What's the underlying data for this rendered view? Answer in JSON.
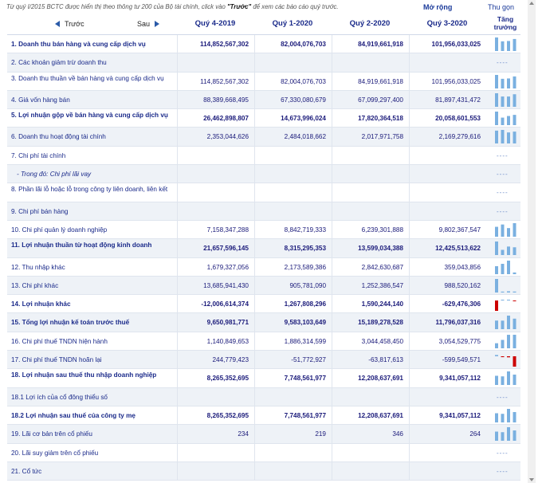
{
  "notice": {
    "text_prefix": "Từ quý I/2015 BCTC được hiển thị theo thông tư 200 của Bộ tài chính, click vào ",
    "text_link": "\"Trước\"",
    "text_suffix": " để xem các báo cáo quý trước."
  },
  "toolbar": {
    "expand_label": "Mở rộng",
    "collapse_label": "Thu gọn"
  },
  "nav": {
    "prev_label": "Trước",
    "next_label": "Sau"
  },
  "columns": [
    "Quý 4-2019",
    "Quý 1-2020",
    "Quý 2-2020",
    "Quý 3-2020"
  ],
  "trend_header": "Tăng trưởng",
  "colors": {
    "bar_pos": "#7ab0e0",
    "bar_neg": "#cc0000",
    "row_alt": "#eef2f7",
    "text": "#1a2a8a"
  },
  "rows": [
    {
      "label": "1. Doanh thu bán hàng và cung cấp dịch vụ",
      "bold": true,
      "values": [
        "114,852,567,302",
        "82,004,076,703",
        "84,919,661,918",
        "101,956,033,025"
      ],
      "trend": [
        114.85,
        82.0,
        84.92,
        101.96
      ]
    },
    {
      "label": "2. Các khoản giảm trừ doanh thu",
      "bold": false,
      "values": [
        "",
        "",
        "",
        ""
      ],
      "trend": null
    },
    {
      "label": "3. Doanh thu thuần về bán hàng và cung cấp dịch vụ",
      "bold": false,
      "values": [
        "114,852,567,302",
        "82,004,076,703",
        "84,919,661,918",
        "101,956,033,025"
      ],
      "trend": [
        114.85,
        82.0,
        84.92,
        101.96
      ]
    },
    {
      "label": "4. Giá vốn hàng bán",
      "bold": false,
      "values": [
        "88,389,668,495",
        "67,330,080,679",
        "67,099,297,400",
        "81,897,431,472"
      ],
      "trend": [
        88.39,
        67.33,
        67.1,
        81.9
      ]
    },
    {
      "label": "5. Lợi nhuận gộp về bán hàng và cung cấp dịch vụ",
      "bold": true,
      "values": [
        "26,462,898,807",
        "14,673,996,024",
        "17,820,364,518",
        "20,058,601,553"
      ],
      "trend": [
        26.46,
        14.67,
        17.82,
        20.06
      ]
    },
    {
      "label": "6. Doanh thu hoạt động tài chính",
      "bold": false,
      "values": [
        "2,353,044,626",
        "2,484,018,662",
        "2,017,971,758",
        "2,169,279,616"
      ],
      "trend": [
        2.35,
        2.48,
        2.02,
        2.17
      ]
    },
    {
      "label": "7. Chi phí tài chính",
      "bold": false,
      "values": [
        "",
        "",
        "",
        ""
      ],
      "trend": null
    },
    {
      "label": "- Trong đó: Chi phí lãi vay",
      "bold": false,
      "sub": true,
      "values": [
        "",
        "",
        "",
        ""
      ],
      "trend": null
    },
    {
      "label": "8. Phần lãi lỗ hoặc lỗ trong công ty liên doanh, liên kết",
      "bold": false,
      "values": [
        "",
        "",
        "",
        ""
      ],
      "trend": null
    },
    {
      "label": "9. Chi phí bán hàng",
      "bold": false,
      "values": [
        "",
        "",
        "",
        ""
      ],
      "trend": null
    },
    {
      "label": "10. Chi phí quản lý doanh nghiệp",
      "bold": false,
      "values": [
        "7,158,347,288",
        "8,842,719,333",
        "6,239,301,888",
        "9,802,367,547"
      ],
      "trend": [
        7.16,
        8.84,
        6.24,
        9.8
      ]
    },
    {
      "label": "11. Lợi nhuận thuần từ hoạt động kinh doanh",
      "bold": true,
      "values": [
        "21,657,596,145",
        "8,315,295,353",
        "13,599,034,388",
        "12,425,513,622"
      ],
      "trend": [
        21.66,
        8.32,
        13.6,
        12.43
      ]
    },
    {
      "label": "12. Thu nhập khác",
      "bold": false,
      "values": [
        "1,679,327,056",
        "2,173,589,386",
        "2,842,630,687",
        "359,043,856"
      ],
      "trend": [
        1.68,
        2.17,
        2.84,
        0.36
      ]
    },
    {
      "label": "13. Chi phí khác",
      "bold": false,
      "values": [
        "13,685,941,430",
        "905,781,090",
        "1,252,386,547",
        "988,520,162"
      ],
      "trend": [
        13.69,
        0.91,
        1.25,
        0.99
      ]
    },
    {
      "label": "14. Lợi nhuận khác",
      "bold": true,
      "values": [
        "-12,006,614,374",
        "1,267,808,296",
        "1,590,244,140",
        "-629,476,306"
      ],
      "trend": [
        -12.01,
        1.27,
        1.59,
        -0.63
      ]
    },
    {
      "label": "15. Tổng lợi nhuận kế toán trước thuế",
      "bold": true,
      "values": [
        "9,650,981,771",
        "9,583,103,649",
        "15,189,278,528",
        "11,796,037,316"
      ],
      "trend": [
        9.65,
        9.58,
        15.19,
        11.8
      ]
    },
    {
      "label": "16. Chi phí thuế TNDN hiện hành",
      "bold": false,
      "values": [
        "1,140,849,653",
        "1,886,314,599",
        "3,044,458,450",
        "3,054,529,775"
      ],
      "trend": [
        1.14,
        1.89,
        3.04,
        3.05
      ]
    },
    {
      "label": "17. Chi phí thuế TNDN hoãn lại",
      "bold": false,
      "values": [
        "244,779,423",
        "-51,772,927",
        "-63,817,613",
        "-599,549,571"
      ],
      "trend": [
        0.24,
        -0.05,
        -0.06,
        -0.6
      ]
    },
    {
      "label": "18. Lợi nhuận sau thuế thu nhập doanh nghiệp",
      "bold": true,
      "values": [
        "8,265,352,695",
        "7,748,561,977",
        "12,208,637,691",
        "9,341,057,112"
      ],
      "trend": [
        8.27,
        7.75,
        12.21,
        9.34
      ]
    },
    {
      "label": "18.1 Lợi ích của cổ đông thiểu số",
      "bold": false,
      "values": [
        "",
        "",
        "",
        ""
      ],
      "trend": null
    },
    {
      "label": "18.2 Lợi nhuận sau thuế của công ty mẹ",
      "bold": true,
      "values": [
        "8,265,352,695",
        "7,748,561,977",
        "12,208,637,691",
        "9,341,057,112"
      ],
      "trend": [
        8.27,
        7.75,
        12.21,
        9.34
      ]
    },
    {
      "label": "19. Lãi cơ bản trên cổ phiếu",
      "bold": false,
      "values": [
        "234",
        "219",
        "346",
        "264"
      ],
      "trend": [
        234,
        219,
        346,
        264
      ]
    },
    {
      "label": "20. Lãi suy giảm trên cổ phiếu",
      "bold": false,
      "values": [
        "",
        "",
        "",
        ""
      ],
      "trend": null
    },
    {
      "label": "21. Cổ tức",
      "bold": false,
      "values": [
        "",
        "",
        "",
        ""
      ],
      "trend": null
    }
  ]
}
